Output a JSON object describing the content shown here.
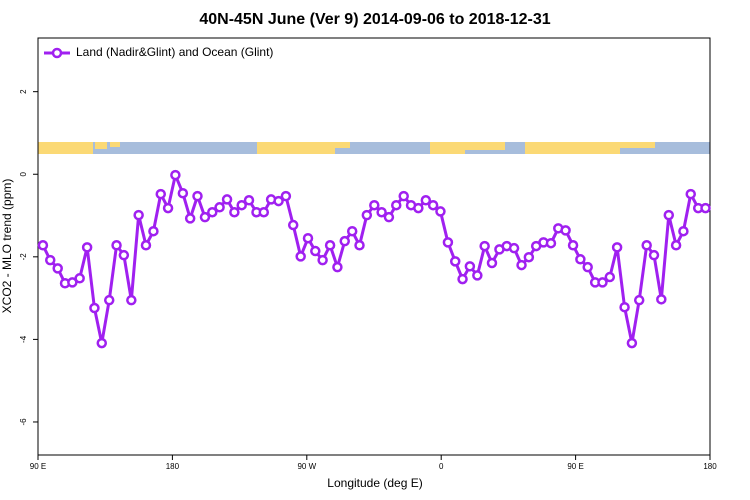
{
  "chart_data": {
    "type": "line",
    "title": "40N-45N June (Ver 9)   2014-09-06 to 2018-12-31",
    "x_label": "Longitude (deg E)",
    "y_label": "XCO2 - MLO trend (ppm)",
    "legend_position": "top-left",
    "x": [
      93.3,
      98.2,
      103.2,
      108.1,
      113.0,
      117.9,
      122.9,
      127.8,
      132.7,
      137.7,
      142.6,
      147.5,
      152.5,
      157.4,
      162.3,
      167.3,
      172.2,
      177.1,
      182.0,
      187.0,
      191.9,
      196.8,
      201.8,
      206.7,
      211.6,
      216.6,
      221.5,
      226.4,
      231.3,
      236.3,
      241.2,
      246.1,
      251.1,
      256.0,
      260.9,
      265.9,
      270.8,
      275.7,
      280.6,
      285.6,
      290.5,
      295.4,
      300.4,
      305.3,
      310.2,
      315.2,
      320.1,
      325.0,
      329.9,
      334.9,
      339.8,
      344.7,
      349.7,
      354.6,
      359.5,
      364.5,
      369.4,
      374.3,
      379.2,
      384.2,
      389.1,
      394.0,
      399.0,
      403.9,
      408.8,
      413.8,
      418.7,
      423.6,
      428.5,
      433.5,
      438.4,
      443.3,
      448.3,
      453.2,
      458.1,
      463.1,
      468.0,
      472.9,
      477.8,
      482.8,
      487.7,
      492.6,
      497.6,
      502.5,
      507.4,
      512.4,
      517.3,
      522.2,
      527.1,
      532.1,
      537.0
    ],
    "series": [
      {
        "name": "Land (Nadir&Glint) and Ocean (Glint)",
        "color": "#a020f0",
        "values": [
          -1.72,
          -2.08,
          -2.28,
          -2.64,
          -2.62,
          -2.52,
          -1.77,
          -3.24,
          -4.09,
          -3.05,
          -1.72,
          -1.96,
          -3.05,
          -0.99,
          -1.72,
          -1.38,
          -0.48,
          -0.82,
          -0.02,
          -0.46,
          -1.07,
          -0.53,
          -1.04,
          -0.92,
          -0.8,
          -0.61,
          -0.92,
          -0.75,
          -0.63,
          -0.92,
          -0.92,
          -0.61,
          -0.65,
          -0.53,
          -1.23,
          -1.99,
          -1.55,
          -1.86,
          -2.08,
          -1.72,
          -2.25,
          -1.62,
          -1.38,
          -1.72,
          -0.99,
          -0.75,
          -0.92,
          -1.04,
          -0.75,
          -0.53,
          -0.75,
          -0.82,
          -0.63,
          -0.75,
          -0.9,
          -1.65,
          -2.11,
          -2.54,
          -2.23,
          -2.45,
          -1.74,
          -2.15,
          -1.82,
          -1.74,
          -1.79,
          -2.2,
          -2.01,
          -1.74,
          -1.65,
          -1.67,
          -1.31,
          -1.36,
          -1.72,
          -2.06,
          -2.25,
          -2.62,
          -2.62,
          -2.49,
          -1.77,
          -3.22,
          -4.09,
          -3.05,
          -1.72,
          -1.96,
          -3.03,
          -0.99,
          -1.72,
          -1.38,
          -0.48,
          -0.82,
          -0.82
        ]
      }
    ],
    "xlim": [
      90,
      540
    ],
    "xticks": [
      {
        "value": 90,
        "label": "90 E"
      },
      180,
      {
        "value": 270,
        "label": "90 W"
      },
      {
        "value": 360,
        "label": "0"
      },
      {
        "value": 450,
        "label": "90 E"
      },
      {
        "value": 540,
        "label": "180"
      }
    ],
    "ylim": [
      -6.8,
      3.3
    ],
    "yticks": [
      -6,
      -4,
      -2,
      0,
      2
    ]
  }
}
